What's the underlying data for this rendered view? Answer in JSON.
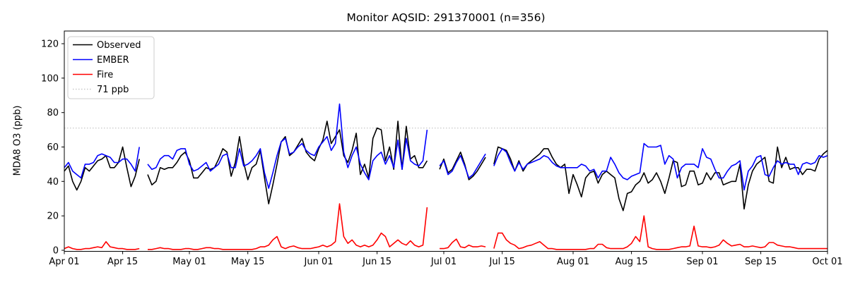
{
  "chart_data": {
    "type": "line",
    "title": "Monitor AQSID: 291370001 (n=356)",
    "ylabel": "MDA8 O3 (ppb)",
    "xlabel": "",
    "ylim": [
      -1,
      127
    ],
    "yticks": [
      0,
      20,
      40,
      60,
      80,
      100,
      120
    ],
    "x_tick_labels": [
      "Apr 01",
      "Apr 15",
      "May 01",
      "May 15",
      "Jun 01",
      "Jun 15",
      "Jul 01",
      "Jul 15",
      "Aug 01",
      "Aug 15",
      "Sep 01",
      "Sep 15",
      "Oct 01"
    ],
    "x_tick_days": [
      0,
      14,
      30,
      44,
      61,
      75,
      91,
      105,
      122,
      136,
      153,
      167,
      183
    ],
    "x_range_days": 183,
    "grid": false,
    "legend_position": "upper-left",
    "threshold": {
      "value": 71,
      "label": "71 ppb",
      "color": "#c8c8c8",
      "style": "dotted"
    },
    "legend": [
      {
        "label": "Observed",
        "color": "#000000",
        "dash": "solid"
      },
      {
        "label": "EMBER",
        "color": "#0000ff",
        "dash": "solid"
      },
      {
        "label": "Fire",
        "color": "#ff0000",
        "dash": "solid"
      },
      {
        "label": "71 ppb",
        "color": "#c8c8c8",
        "dash": "dotted"
      }
    ],
    "series": [
      {
        "name": "Observed",
        "color": "#000000",
        "values": [
          46,
          49,
          40,
          35,
          40,
          48,
          46,
          49,
          52,
          53,
          55,
          48,
          48,
          51,
          60,
          48,
          37,
          43,
          53,
          null,
          44,
          38,
          40,
          48,
          47,
          48,
          48,
          51,
          55,
          57,
          52,
          42,
          42,
          45,
          48,
          47,
          48,
          53,
          59,
          57,
          43,
          51,
          66,
          51,
          41,
          48,
          50,
          58,
          42,
          27,
          38,
          50,
          63,
          66,
          55,
          57,
          61,
          65,
          57,
          54,
          52,
          59,
          64,
          75,
          62,
          66,
          70,
          55,
          51,
          58,
          68,
          44,
          50,
          42,
          65,
          71,
          70,
          52,
          60,
          47,
          75,
          47,
          72,
          53,
          55,
          48,
          48,
          52,
          null,
          null,
          47,
          53,
          45,
          47,
          52,
          57,
          50,
          41,
          43,
          46,
          50,
          54,
          null,
          50,
          60,
          59,
          58,
          53,
          46,
          52,
          46,
          50,
          52,
          54,
          56,
          59,
          59,
          54,
          50,
          48,
          50,
          33,
          44,
          38,
          31,
          42,
          45,
          46,
          39,
          44,
          46,
          44,
          42,
          30,
          23,
          33,
          34,
          38,
          40,
          45,
          39,
          41,
          45,
          40,
          33,
          42,
          52,
          51,
          37,
          38,
          46,
          46,
          38,
          39,
          45,
          41,
          45,
          45,
          38,
          39,
          40,
          40,
          50,
          24,
          38,
          46,
          50,
          52,
          54,
          40,
          39,
          60,
          48,
          54,
          47,
          48,
          48,
          44,
          47,
          47,
          46,
          53,
          56,
          58
        ]
      },
      {
        "name": "EMBER",
        "color": "#0000ff",
        "values": [
          48,
          51,
          46,
          44,
          42,
          50,
          50,
          51,
          55,
          56,
          55,
          54,
          51,
          51,
          53,
          53,
          50,
          46,
          60,
          null,
          50,
          47,
          48,
          53,
          55,
          55,
          53,
          58,
          59,
          59,
          50,
          46,
          47,
          49,
          51,
          46,
          48,
          50,
          55,
          56,
          48,
          48,
          59,
          49,
          50,
          52,
          55,
          59,
          45,
          36,
          45,
          55,
          63,
          65,
          56,
          57,
          60,
          62,
          58,
          56,
          55,
          60,
          63,
          66,
          58,
          62,
          85,
          57,
          48,
          55,
          60,
          50,
          45,
          41,
          52,
          55,
          57,
          50,
          55,
          48,
          64,
          47,
          65,
          52,
          50,
          49,
          52,
          70,
          null,
          null,
          49,
          52,
          44,
          46,
          51,
          55,
          49,
          42,
          44,
          48,
          52,
          56,
          null,
          49,
          55,
          59,
          57,
          51,
          46,
          51,
          47,
          50,
          51,
          52,
          53,
          55,
          54,
          51,
          49,
          48,
          48,
          48,
          48,
          48,
          50,
          49,
          46,
          47,
          42,
          46,
          46,
          54,
          50,
          45,
          42,
          41,
          43,
          44,
          45,
          62,
          60,
          60,
          60,
          61,
          50,
          55,
          53,
          42,
          48,
          50,
          50,
          50,
          48,
          59,
          54,
          53,
          47,
          42,
          42,
          46,
          49,
          50,
          52,
          35,
          46,
          49,
          54,
          55,
          44,
          43,
          48,
          52,
          50,
          51,
          50,
          50,
          44,
          50,
          51,
          50,
          51,
          55,
          54,
          55
        ]
      },
      {
        "name": "Fire",
        "color": "#ff0000",
        "values": [
          1,
          2,
          1,
          0.5,
          0.5,
          1,
          1,
          1.5,
          2,
          1.5,
          5,
          2,
          1.5,
          1,
          1,
          0.5,
          0.5,
          0.5,
          1,
          null,
          0.5,
          0.5,
          1,
          1.5,
          1,
          1,
          0.5,
          0.5,
          0.5,
          1,
          1,
          0.5,
          0.5,
          1,
          1.5,
          1.5,
          1,
          1,
          0.5,
          0.5,
          0.5,
          0.5,
          0.5,
          0.5,
          0.5,
          0.5,
          1,
          2,
          2,
          3,
          6,
          8,
          2,
          1,
          2,
          2.5,
          1.5,
          1,
          1,
          1,
          1.5,
          2,
          3,
          2,
          3,
          5,
          27,
          8,
          4,
          6,
          3,
          2,
          3,
          2,
          3,
          6,
          10,
          8,
          2,
          4,
          6,
          4,
          3,
          5.5,
          3,
          2,
          3,
          25,
          null,
          null,
          1,
          1,
          1.5,
          4.5,
          6.5,
          2,
          1.5,
          3,
          2,
          2,
          2.5,
          2,
          null,
          1,
          10,
          10,
          6,
          4,
          3,
          1,
          1.5,
          2.5,
          3,
          4,
          5,
          3,
          1,
          1,
          0.5,
          0.5,
          0.5,
          0.5,
          0.5,
          0.5,
          0.5,
          0.5,
          1,
          1,
          3.5,
          3.5,
          1.5,
          1,
          1,
          1,
          1,
          2,
          4,
          8,
          5,
          20,
          2,
          1,
          0.5,
          0.5,
          0.5,
          0.5,
          1,
          1.5,
          2,
          2,
          2.5,
          14,
          2.5,
          2,
          2,
          1.5,
          2,
          3,
          6,
          4,
          2.5,
          3,
          3.5,
          2,
          2,
          2.5,
          2,
          1.5,
          2,
          4.5,
          4.5,
          3,
          2.5,
          2,
          2,
          1.5,
          1,
          1,
          1,
          1,
          1,
          1,
          1,
          1
        ]
      }
    ]
  }
}
